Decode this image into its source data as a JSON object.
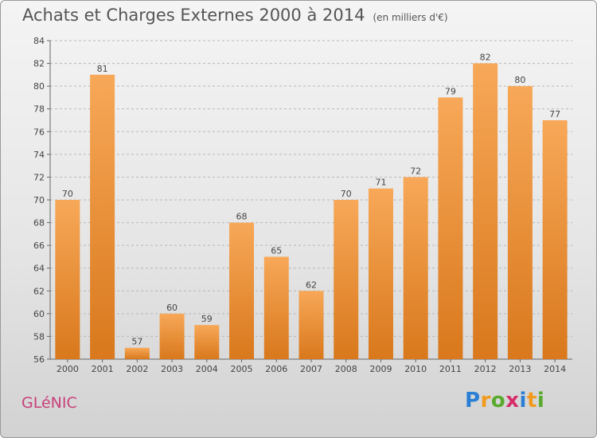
{
  "title": "Achats et Charges Externes 2000 à 2014",
  "unit": "(en milliers d'€)",
  "commune": "GLéNIC",
  "logo": {
    "text": "Proxiti",
    "letters": [
      "P",
      "r",
      "o",
      "x",
      "i",
      "t",
      "i"
    ],
    "colors": [
      "#2a7fd4",
      "#f29a1e",
      "#5aaa2e",
      "#d62d6a",
      "#2a7fd4",
      "#f29a1e",
      "#5aaa2e"
    ]
  },
  "colors": {
    "bar_top": "#f7a858",
    "bar_bottom": "#d9781c",
    "grid": "#b8b8b8",
    "commune": "#c8407a"
  },
  "chart_data": {
    "type": "bar",
    "title": "Achats et Charges Externes 2000 à 2014",
    "subtitle": "(en milliers d'€)",
    "xlabel": "",
    "ylabel": "",
    "categories": [
      "2000",
      "2001",
      "2002",
      "2003",
      "2004",
      "2005",
      "2006",
      "2007",
      "2008",
      "2009",
      "2010",
      "2011",
      "2012",
      "2013",
      "2014"
    ],
    "values": [
      70,
      81,
      57,
      60,
      59,
      68,
      65,
      62,
      70,
      71,
      72,
      79,
      82,
      80,
      77
    ],
    "ylim": [
      56,
      84
    ],
    "yticks": [
      56,
      58,
      60,
      62,
      64,
      66,
      68,
      70,
      72,
      74,
      76,
      78,
      80,
      82,
      84
    ],
    "grid": true,
    "data_labels": true
  }
}
